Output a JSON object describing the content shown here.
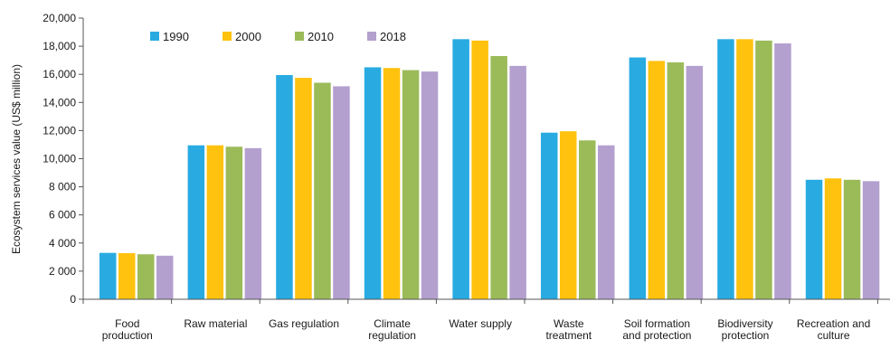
{
  "chart_data": {
    "type": "bar",
    "title": "",
    "xlabel": "",
    "ylabel": "Ecosystem services value (US$ million)",
    "ylim": [
      0,
      20000
    ],
    "yticks": [
      0,
      2000,
      4000,
      6000,
      8000,
      10000,
      12000,
      14000,
      16000,
      18000,
      20000
    ],
    "ytick_labels": [
      "0",
      "2 000",
      "4 000",
      "6 000",
      "8 000",
      "10,000",
      "12,000",
      "14,000",
      "16,000",
      "18,000",
      "20,000"
    ],
    "grid": false,
    "legend_position": "top-left",
    "categories": [
      [
        "Food",
        "production"
      ],
      [
        "Raw material"
      ],
      [
        "Gas regulation"
      ],
      [
        "Climate",
        "regulation"
      ],
      [
        "Water supply"
      ],
      [
        "Waste",
        "treatment"
      ],
      [
        "Soil formation",
        "and protection"
      ],
      [
        "Biodiversity",
        "protection"
      ],
      [
        "Recreation and",
        "culture"
      ]
    ],
    "series": [
      {
        "name": "1990",
        "color": "#29abe2",
        "values": [
          3300,
          10950,
          15950,
          16500,
          18500,
          11850,
          17200,
          18500,
          8500
        ]
      },
      {
        "name": "2000",
        "color": "#ffc20e",
        "values": [
          3280,
          10950,
          15750,
          16450,
          18400,
          11950,
          16950,
          18500,
          8600
        ]
      },
      {
        "name": "2010",
        "color": "#9bbb59",
        "values": [
          3200,
          10850,
          15400,
          16300,
          17300,
          11300,
          16850,
          18400,
          8500
        ]
      },
      {
        "name": "2018",
        "color": "#b4a0cf",
        "values": [
          3100,
          10750,
          15150,
          16200,
          16600,
          10950,
          16600,
          18200,
          8400
        ]
      }
    ]
  }
}
